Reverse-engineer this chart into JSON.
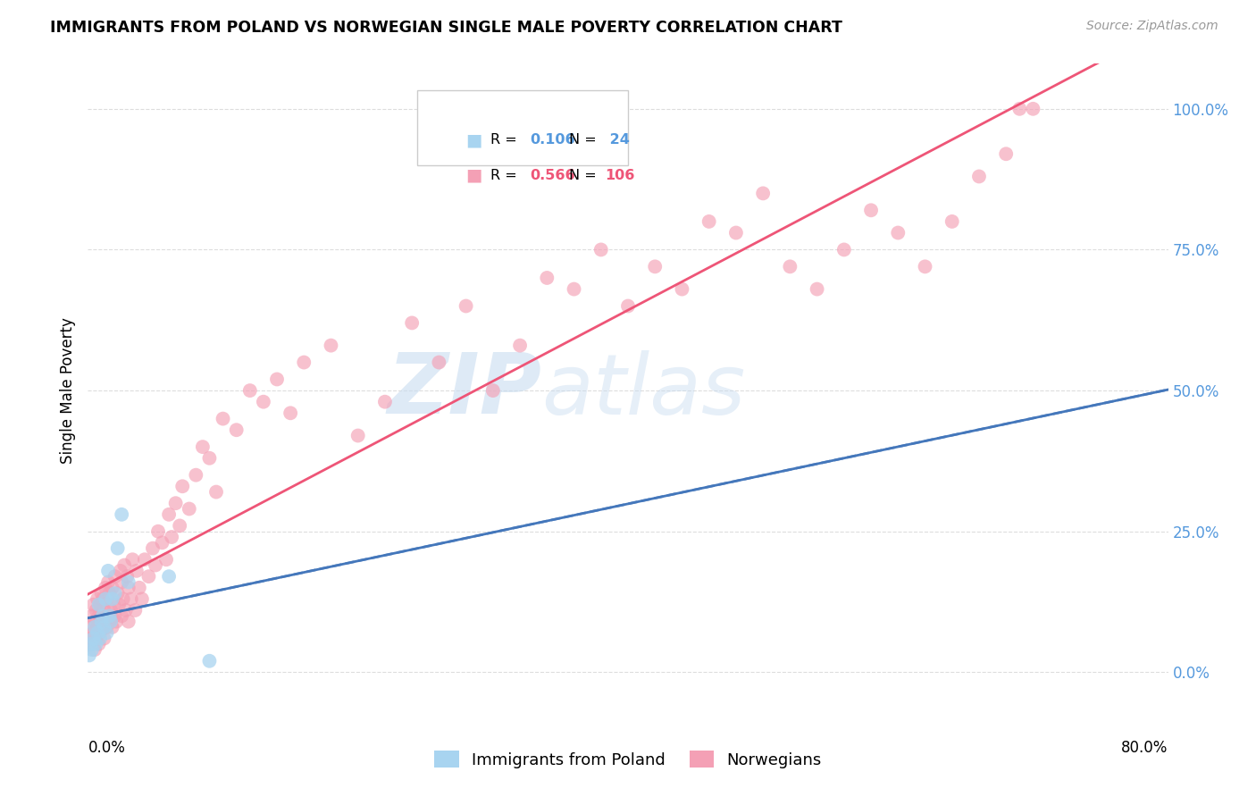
{
  "title": "IMMIGRANTS FROM POLAND VS NORWEGIAN SINGLE MALE POVERTY CORRELATION CHART",
  "source": "Source: ZipAtlas.com",
  "ylabel": "Single Male Poverty",
  "right_yticks": [
    "0.0%",
    "25.0%",
    "50.0%",
    "75.0%",
    "100.0%"
  ],
  "right_ytick_vals": [
    0.0,
    0.25,
    0.5,
    0.75,
    1.0
  ],
  "legend_label1": "Immigrants from Poland",
  "legend_label2": "Norwegians",
  "color_blue": "#A8D4F0",
  "color_pink": "#F4A0B5",
  "color_blue_line": "#4477BB",
  "color_pink_line": "#EE5577",
  "color_text_blue": "#5599DD",
  "color_text_pink": "#EE5577",
  "watermark_zip": "ZIP",
  "watermark_atlas": "atlas",
  "xmin": 0.0,
  "xmax": 0.8,
  "ymin": -0.08,
  "ymax": 1.08,
  "poland_x": [
    0.001,
    0.002,
    0.003,
    0.004,
    0.005,
    0.006,
    0.007,
    0.008,
    0.009,
    0.01,
    0.011,
    0.012,
    0.013,
    0.014,
    0.015,
    0.016,
    0.017,
    0.018,
    0.02,
    0.022,
    0.025,
    0.03,
    0.06,
    0.09
  ],
  "poland_y": [
    0.03,
    0.05,
    0.04,
    0.06,
    0.08,
    0.05,
    0.07,
    0.12,
    0.06,
    0.09,
    0.1,
    0.08,
    0.13,
    0.07,
    0.18,
    0.1,
    0.09,
    0.13,
    0.14,
    0.22,
    0.28,
    0.16,
    0.17,
    0.02
  ],
  "norway_x": [
    0.001,
    0.002,
    0.003,
    0.003,
    0.004,
    0.004,
    0.005,
    0.005,
    0.006,
    0.006,
    0.007,
    0.007,
    0.008,
    0.008,
    0.009,
    0.009,
    0.01,
    0.01,
    0.011,
    0.011,
    0.012,
    0.012,
    0.013,
    0.013,
    0.014,
    0.014,
    0.015,
    0.015,
    0.016,
    0.016,
    0.017,
    0.018,
    0.018,
    0.019,
    0.02,
    0.02,
    0.021,
    0.022,
    0.023,
    0.024,
    0.025,
    0.025,
    0.026,
    0.027,
    0.028,
    0.029,
    0.03,
    0.03,
    0.032,
    0.033,
    0.035,
    0.036,
    0.038,
    0.04,
    0.042,
    0.045,
    0.048,
    0.05,
    0.052,
    0.055,
    0.058,
    0.06,
    0.062,
    0.065,
    0.068,
    0.07,
    0.075,
    0.08,
    0.085,
    0.09,
    0.095,
    0.1,
    0.11,
    0.12,
    0.13,
    0.14,
    0.15,
    0.16,
    0.18,
    0.2,
    0.22,
    0.24,
    0.26,
    0.28,
    0.3,
    0.32,
    0.34,
    0.36,
    0.38,
    0.4,
    0.42,
    0.44,
    0.46,
    0.48,
    0.5,
    0.52,
    0.54,
    0.56,
    0.58,
    0.6,
    0.62,
    0.64,
    0.66,
    0.68,
    0.69,
    0.7
  ],
  "norway_y": [
    0.05,
    0.08,
    0.06,
    0.1,
    0.07,
    0.12,
    0.04,
    0.09,
    0.06,
    0.11,
    0.08,
    0.13,
    0.05,
    0.1,
    0.07,
    0.12,
    0.09,
    0.14,
    0.08,
    0.13,
    0.06,
    0.11,
    0.09,
    0.15,
    0.08,
    0.13,
    0.1,
    0.16,
    0.09,
    0.14,
    0.11,
    0.08,
    0.15,
    0.12,
    0.1,
    0.17,
    0.09,
    0.14,
    0.12,
    0.18,
    0.1,
    0.16,
    0.13,
    0.19,
    0.11,
    0.17,
    0.09,
    0.15,
    0.13,
    0.2,
    0.11,
    0.18,
    0.15,
    0.13,
    0.2,
    0.17,
    0.22,
    0.19,
    0.25,
    0.23,
    0.2,
    0.28,
    0.24,
    0.3,
    0.26,
    0.33,
    0.29,
    0.35,
    0.4,
    0.38,
    0.32,
    0.45,
    0.43,
    0.5,
    0.48,
    0.52,
    0.46,
    0.55,
    0.58,
    0.42,
    0.48,
    0.62,
    0.55,
    0.65,
    0.5,
    0.58,
    0.7,
    0.68,
    0.75,
    0.65,
    0.72,
    0.68,
    0.8,
    0.78,
    0.85,
    0.72,
    0.68,
    0.75,
    0.82,
    0.78,
    0.72,
    0.8,
    0.88,
    0.92,
    1.0,
    1.0
  ]
}
